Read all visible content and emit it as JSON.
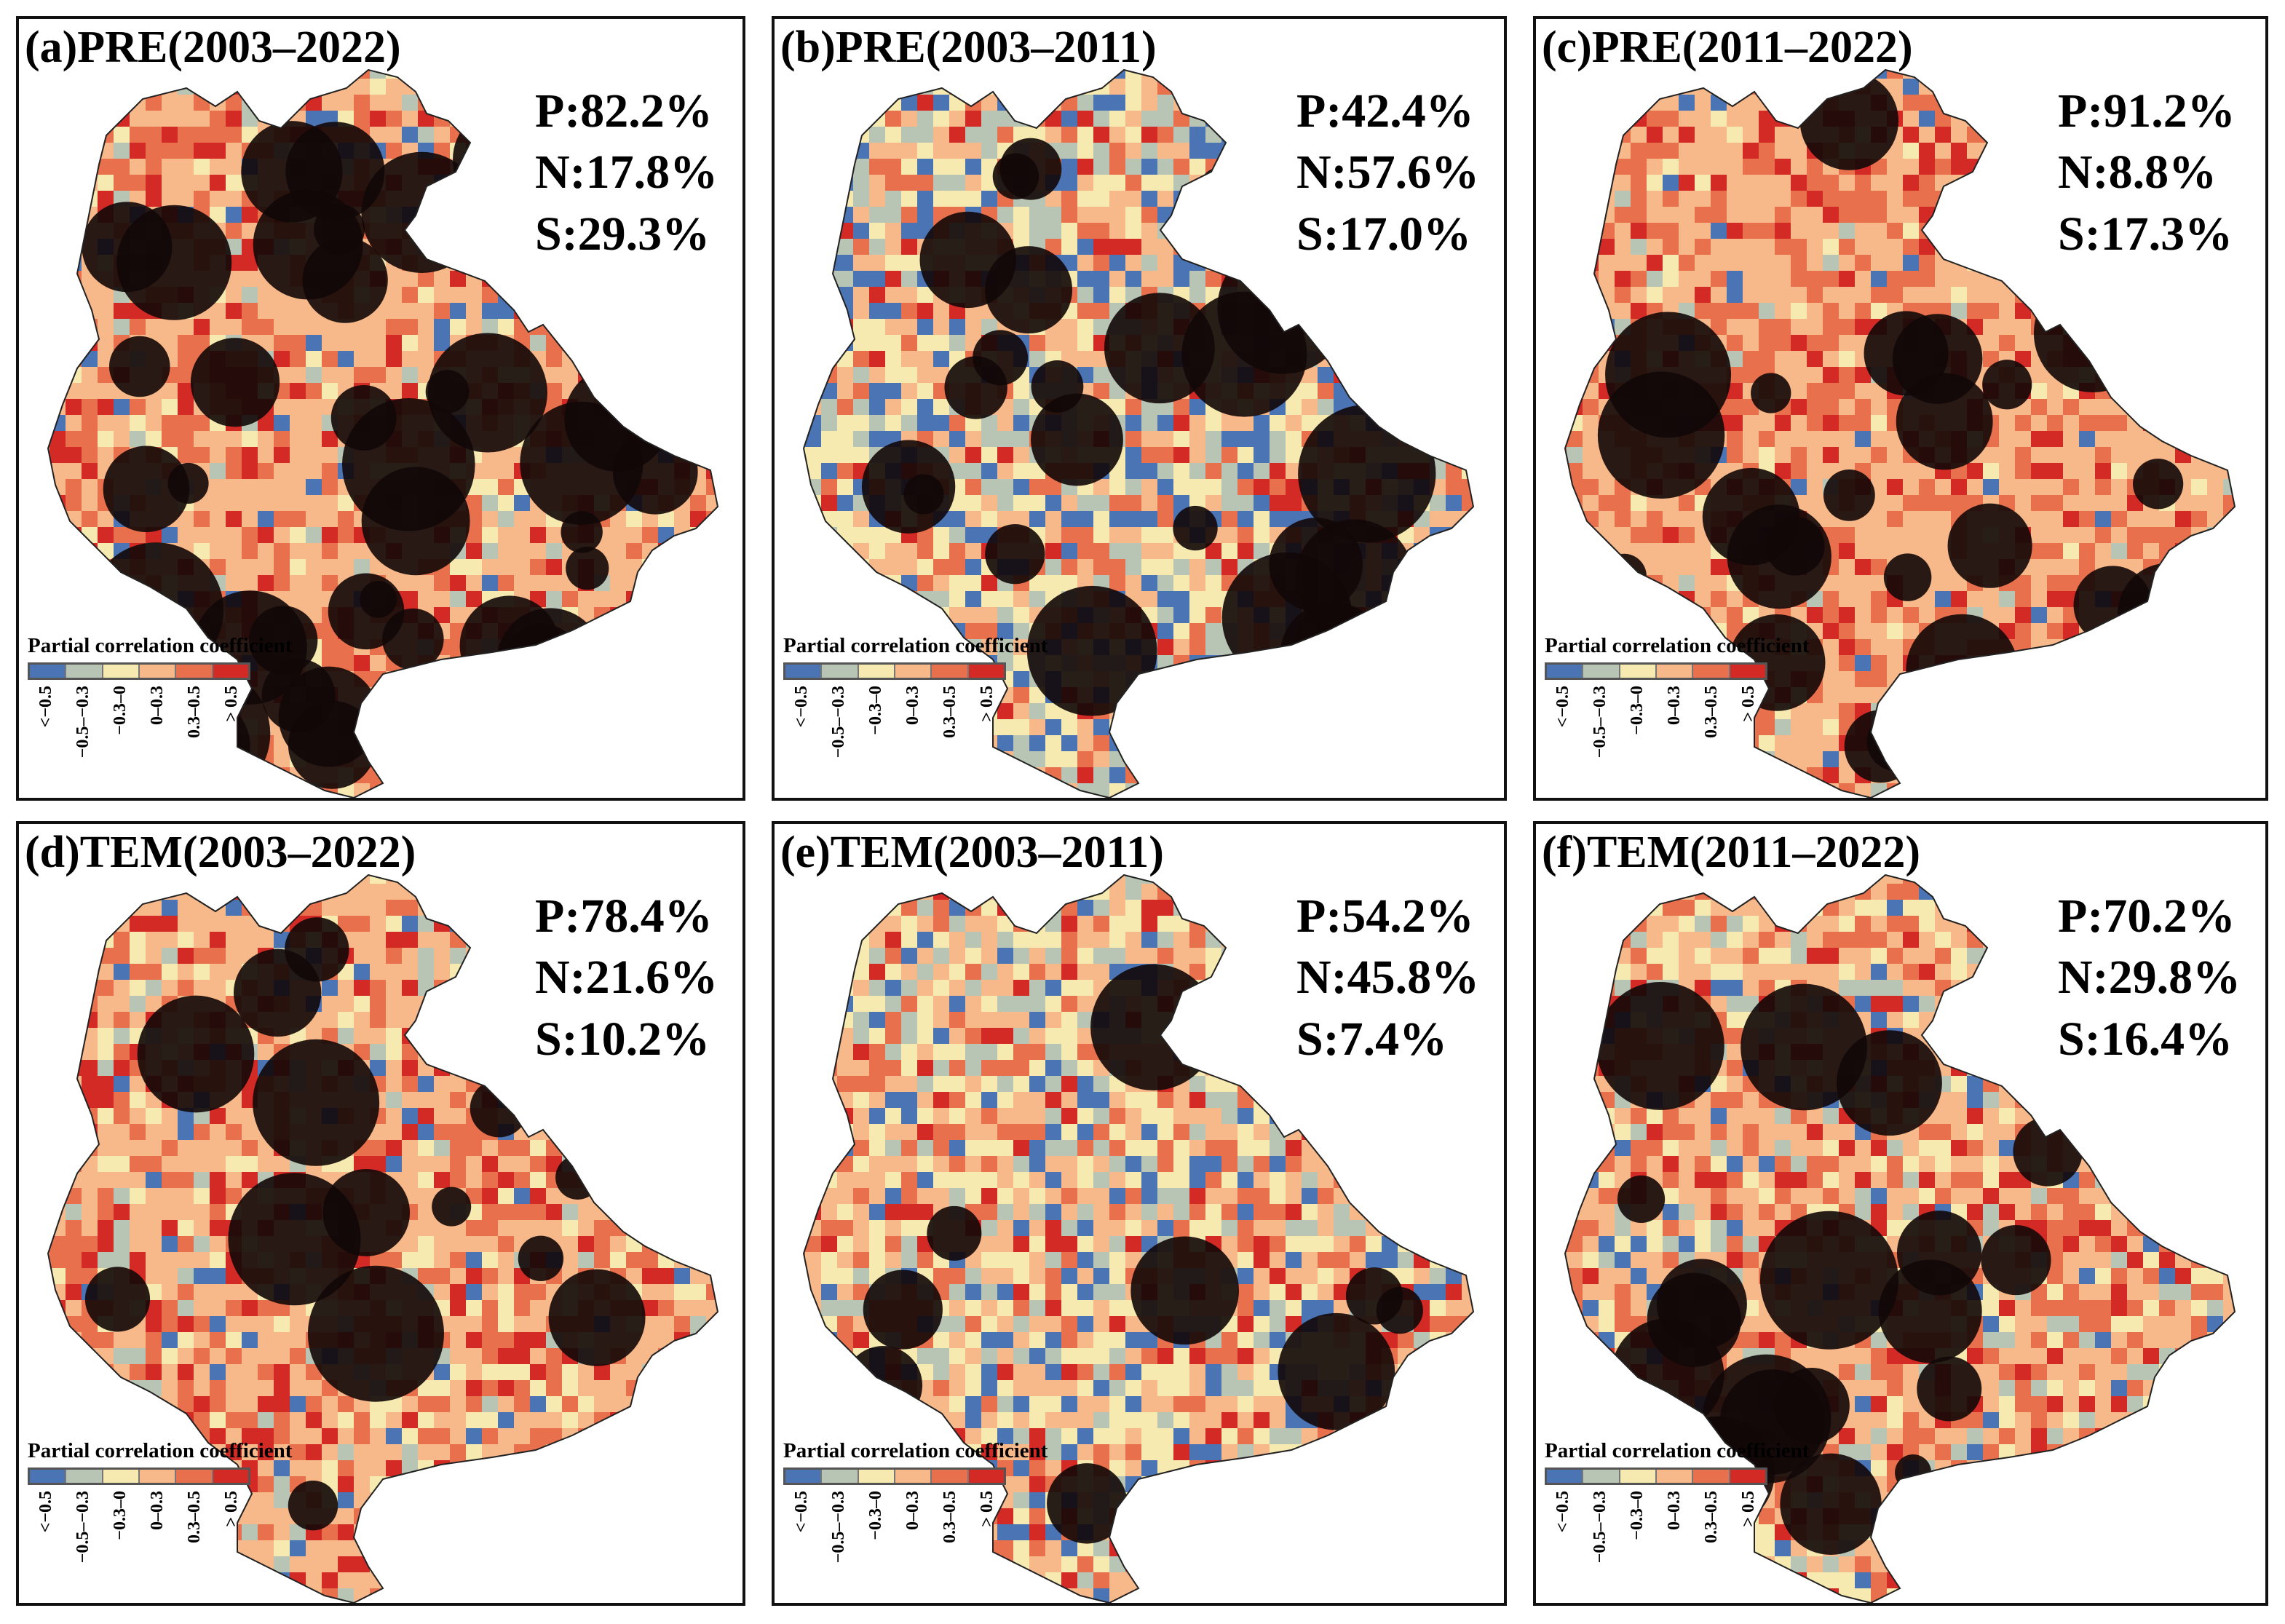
{
  "panels": [
    {
      "id": "a",
      "title": "(a)PRE(2003–2022)",
      "P": "P:82.2%",
      "N": "N:17.8%",
      "S": "S:29.3%",
      "pos_share": 82.2,
      "sig_share": 29.3
    },
    {
      "id": "b",
      "title": "(b)PRE(2003–2011)",
      "P": "P:42.4%",
      "N": "N:57.6%",
      "S": "S:17.0%",
      "pos_share": 42.4,
      "sig_share": 17.0
    },
    {
      "id": "c",
      "title": "(c)PRE(2011–2022)",
      "P": "P:91.2%",
      "N": "N:8.8%",
      "S": "S:17.3%",
      "pos_share": 91.2,
      "sig_share": 17.3
    },
    {
      "id": "d",
      "title": "(d)TEM(2003–2022)",
      "P": "P:78.4%",
      "N": "N:21.6%",
      "S": "S:10.2%",
      "pos_share": 78.4,
      "sig_share": 10.2
    },
    {
      "id": "e",
      "title": "(e)TEM(2003–2011)",
      "P": "P:54.2%",
      "N": "N:45.8%",
      "S": "S:7.4%",
      "pos_share": 54.2,
      "sig_share": 7.4
    },
    {
      "id": "f",
      "title": "(f)TEM(2011–2022)",
      "P": "P:70.2%",
      "N": "N:29.8%",
      "S": "S:16.4%",
      "pos_share": 70.2,
      "sig_share": 16.4
    }
  ],
  "legend": {
    "title": "Partial correlation coefficient",
    "classes": [
      "<−0.5",
      "−0.5–−0.3",
      "−0.3–0",
      "0–0.3",
      "0.3–0.5",
      "> 0.5"
    ],
    "colors": [
      "#4a74b4",
      "#b8c4b4",
      "#f6eab0",
      "#f7b88a",
      "#e8704c",
      "#d42a26"
    ]
  }
}
